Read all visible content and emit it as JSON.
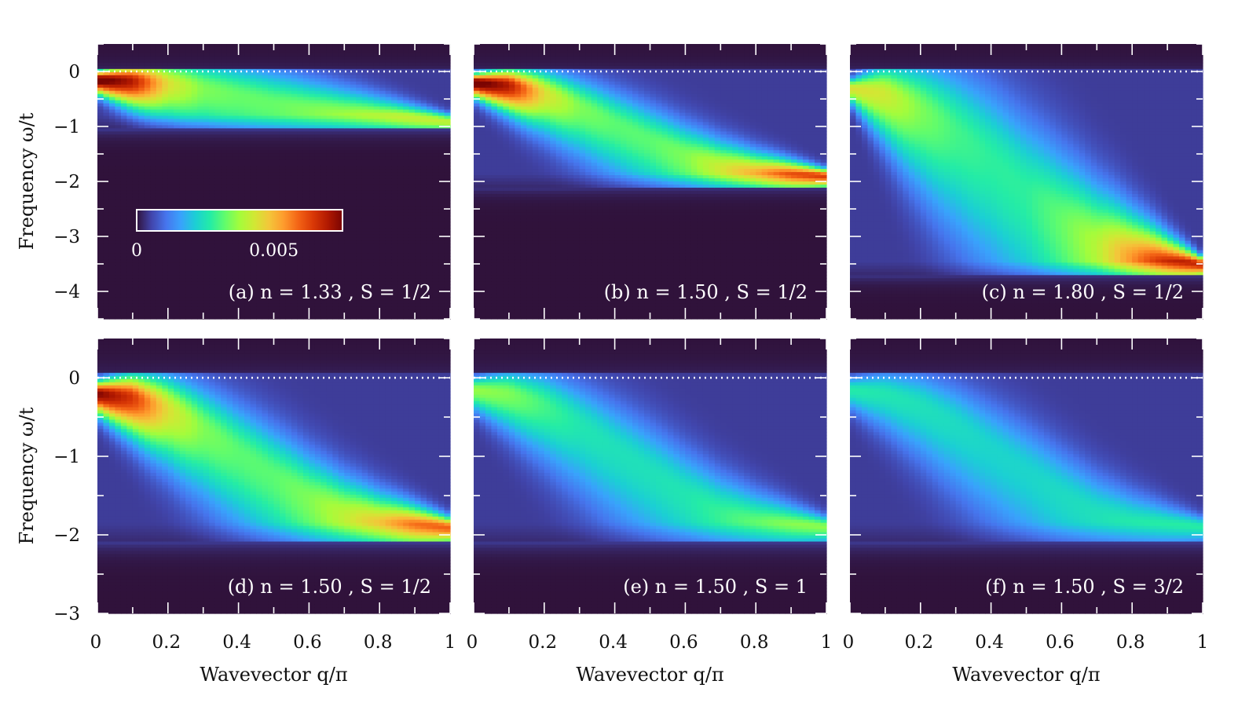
{
  "chart_data": [
    {
      "type": "heatmap",
      "panel_label": "(a) n = 1.33 , S = 1/2",
      "xlim": [
        0,
        1
      ],
      "ylim": [
        -4.5,
        0.5
      ],
      "xticks": [],
      "yticks": [
        "0",
        "−1",
        "−2",
        "−3",
        "−4"
      ],
      "ylabel": "Frequency ω/t",
      "xlabel": "",
      "dotted_line_y": 0,
      "dispersion": {
        "q": [
          0,
          0.1,
          0.2,
          0.3,
          0.4,
          0.5,
          0.6,
          0.7,
          0.8,
          0.9,
          1.0
        ],
        "omega": [
          -0.15,
          -0.17,
          -0.22,
          -0.32,
          -0.45,
          -0.6,
          -0.73,
          -0.83,
          -0.9,
          -0.94,
          -0.95
        ]
      },
      "peak_intensity": [
        0.0075,
        0.0065,
        0.004,
        0.003,
        0.0028,
        0.0028,
        0.003,
        0.0033,
        0.0038,
        0.0045,
        0.005
      ],
      "band_floor": -1.05
    },
    {
      "type": "heatmap",
      "panel_label": "(b) n = 1.50 , S = 1/2",
      "xlim": [
        0,
        1
      ],
      "ylim": [
        -4.5,
        0.5
      ],
      "xticks": [],
      "yticks": [],
      "ylabel": "",
      "xlabel": "",
      "dotted_line_y": 0,
      "dispersion": {
        "q": [
          0,
          0.1,
          0.2,
          0.3,
          0.4,
          0.5,
          0.6,
          0.7,
          0.8,
          0.9,
          1.0
        ],
        "omega": [
          -0.2,
          -0.25,
          -0.4,
          -0.65,
          -0.95,
          -1.25,
          -1.55,
          -1.78,
          -1.9,
          -1.93,
          -1.94
        ]
      },
      "peak_intensity": [
        0.0075,
        0.0065,
        0.004,
        0.003,
        0.0027,
        0.0027,
        0.003,
        0.0038,
        0.0048,
        0.0062,
        0.007
      ],
      "band_floor": -2.1
    },
    {
      "type": "heatmap",
      "panel_label": "(c) n = 1.80 , S = 1/2",
      "xlim": [
        0,
        1
      ],
      "ylim": [
        -4.5,
        0.5
      ],
      "xticks": [],
      "yticks": [],
      "ylabel": "",
      "xlabel": "",
      "dotted_line_y": 0,
      "dispersion": {
        "q": [
          0,
          0.1,
          0.2,
          0.3,
          0.4,
          0.5,
          0.6,
          0.7,
          0.8,
          0.9,
          1.0
        ],
        "omega": [
          -0.3,
          -0.4,
          -0.7,
          -1.1,
          -1.6,
          -2.2,
          -2.75,
          -3.2,
          -3.45,
          -3.55,
          -3.55
        ]
      },
      "peak_intensity": [
        0.004,
        0.0038,
        0.003,
        0.0025,
        0.0023,
        0.0023,
        0.0028,
        0.0035,
        0.005,
        0.0065,
        0.0075
      ],
      "band_floor": -3.7
    },
    {
      "type": "heatmap",
      "panel_label": "(d) n = 1.50 , S = 1/2",
      "xlim": [
        0,
        1
      ],
      "ylim": [
        -3,
        0.5
      ],
      "xticks": [
        "0",
        "0.2",
        "0.4",
        "0.6",
        "0.8",
        "1"
      ],
      "yticks": [
        "0",
        "−1",
        "−2",
        "−3"
      ],
      "ylabel": "Frequency ω/t",
      "xlabel": "Wavevector q/π",
      "dotted_line_y": 0,
      "dispersion": {
        "q": [
          0,
          0.1,
          0.2,
          0.3,
          0.4,
          0.5,
          0.6,
          0.7,
          0.8,
          0.9,
          1.0
        ],
        "omega": [
          -0.2,
          -0.25,
          -0.4,
          -0.65,
          -0.95,
          -1.25,
          -1.55,
          -1.78,
          -1.9,
          -1.93,
          -1.94
        ]
      },
      "peak_intensity": [
        0.007,
        0.006,
        0.004,
        0.003,
        0.0027,
        0.0027,
        0.003,
        0.0036,
        0.0045,
        0.0058,
        0.0065
      ],
      "band_floor": -2.1
    },
    {
      "type": "heatmap",
      "panel_label": "(e) n = 1.50 , S = 1",
      "xlim": [
        0,
        1
      ],
      "ylim": [
        -3,
        0.5
      ],
      "xticks": [
        "0",
        "0.2",
        "0.4",
        "0.6",
        "0.8",
        "1"
      ],
      "yticks": [],
      "ylabel": "",
      "xlabel": "Wavevector q/π",
      "dotted_line_y": 0,
      "dispersion": {
        "q": [
          0,
          0.1,
          0.2,
          0.3,
          0.4,
          0.5,
          0.6,
          0.7,
          0.8,
          0.9,
          1.0
        ],
        "omega": [
          -0.15,
          -0.2,
          -0.35,
          -0.6,
          -0.9,
          -1.2,
          -1.5,
          -1.75,
          -1.88,
          -1.92,
          -1.93
        ]
      },
      "peak_intensity": [
        0.0032,
        0.003,
        0.0025,
        0.0021,
        0.002,
        0.002,
        0.0021,
        0.0024,
        0.0028,
        0.0033,
        0.0036
      ],
      "band_floor": -2.1
    },
    {
      "type": "heatmap",
      "panel_label": "(f) n = 1.50 , S = 3/2",
      "xlim": [
        0,
        1
      ],
      "ylim": [
        -3,
        0.5
      ],
      "xticks": [
        "0",
        "0.2",
        "0.4",
        "0.6",
        "0.8",
        "1"
      ],
      "yticks": [],
      "ylabel": "",
      "xlabel": "Wavevector q/π",
      "dotted_line_y": 0,
      "dispersion": {
        "q": [
          0,
          0.1,
          0.2,
          0.3,
          0.4,
          0.5,
          0.6,
          0.7,
          0.8,
          0.9,
          1.0
        ],
        "omega": [
          -0.15,
          -0.2,
          -0.35,
          -0.6,
          -0.9,
          -1.2,
          -1.5,
          -1.75,
          -1.88,
          -1.92,
          -1.93
        ]
      },
      "peak_intensity": [
        0.0022,
        0.0021,
        0.002,
        0.0019,
        0.0018,
        0.0018,
        0.0019,
        0.002,
        0.0022,
        0.0024,
        0.0026
      ],
      "band_floor": -2.1
    }
  ],
  "colorbar": {
    "min": 0,
    "max": 0.0075,
    "tick_labels": [
      "0",
      "0.005"
    ],
    "tick_values": [
      0,
      0.005
    ],
    "colormap": [
      "#30123b",
      "#4145ab",
      "#4675ed",
      "#39a2fc",
      "#1bcfd4",
      "#24eca6",
      "#61fc6c",
      "#a4fc3b",
      "#d1e834",
      "#f3c63a",
      "#fe9b2d",
      "#f36315",
      "#d93806",
      "#b11901",
      "#7a0402"
    ]
  },
  "colors": {
    "background_dark": "#2e1a4f",
    "dotted_line": "#ffffff"
  }
}
